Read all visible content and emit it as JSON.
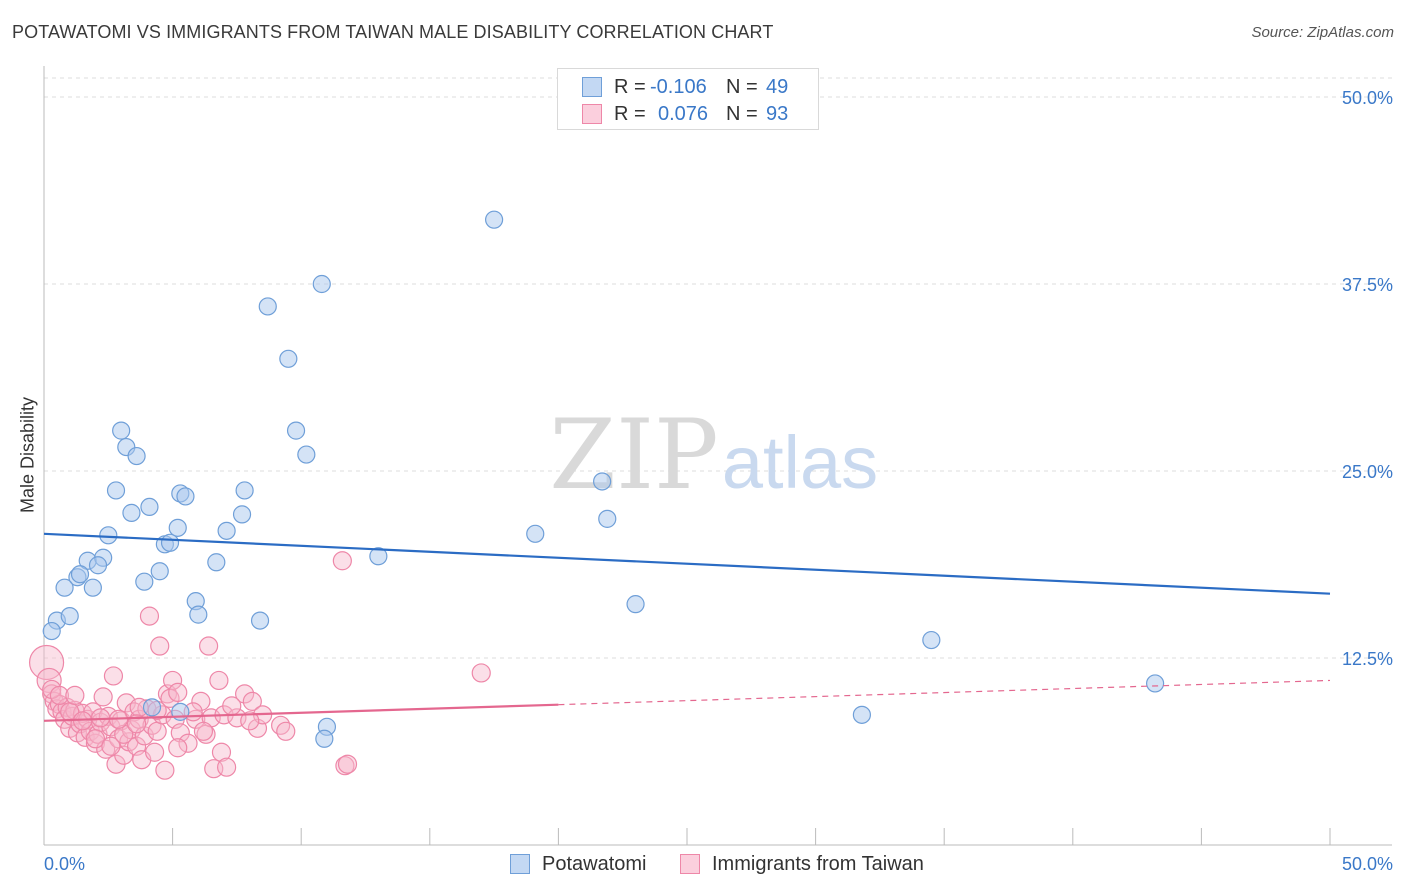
{
  "title": "POTAWATOMI VS IMMIGRANTS FROM TAIWAN MALE DISABILITY CORRELATION CHART",
  "source": "Source: ZipAtlas.com",
  "watermark": {
    "zip": "ZIP",
    "atlas": "atlas"
  },
  "legend": {
    "series1": {
      "r_label": "R =",
      "r_value": "-0.106",
      "n_label": "N =",
      "n_value": "49"
    },
    "series2": {
      "r_label": "R =",
      "r_value": "0.076",
      "n_label": "N =",
      "n_value": "93"
    }
  },
  "colors": {
    "blue_fill": "#a9c8ee",
    "blue_stroke": "#6f9fd8",
    "blue_line": "#2b6cc4",
    "pink_fill": "#f7b7cb",
    "pink_stroke": "#ee87a8",
    "pink_line": "#e4678f",
    "value_text": "#3a78c8"
  },
  "chart_data": {
    "type": "scatter",
    "title": "POTAWATOMI VS IMMIGRANTS FROM TAIWAN MALE DISABILITY CORRELATION CHART",
    "xlabel": "",
    "ylabel": "Male Disability",
    "xlim": [
      0,
      50
    ],
    "ylim": [
      0,
      50
    ],
    "x_tick_labels": [
      "0.0%",
      "50.0%"
    ],
    "y_ticks": [
      12.5,
      25.0,
      37.5,
      50.0
    ],
    "y_tick_labels": [
      "12.5%",
      "25.0%",
      "37.5%",
      "50.0%"
    ],
    "grid": true,
    "legend_position": "bottom",
    "series": [
      {
        "name": "Potawatomi",
        "r": -0.106,
        "n": 49,
        "trend": {
          "x0": 0,
          "y0": 20.8,
          "x1": 50,
          "y1": 16.8
        },
        "points": [
          [
            17.5,
            41.8
          ],
          [
            10.8,
            37.5
          ],
          [
            8.7,
            36.0
          ],
          [
            9.5,
            32.5
          ],
          [
            9.8,
            27.7
          ],
          [
            10.2,
            26.1
          ],
          [
            3.0,
            27.7
          ],
          [
            3.2,
            26.6
          ],
          [
            3.6,
            26.0
          ],
          [
            2.8,
            23.7
          ],
          [
            3.4,
            22.2
          ],
          [
            4.1,
            22.6
          ],
          [
            5.3,
            23.5
          ],
          [
            5.5,
            23.3
          ],
          [
            7.8,
            23.7
          ],
          [
            7.7,
            22.1
          ],
          [
            5.2,
            21.2
          ],
          [
            7.1,
            21.0
          ],
          [
            2.5,
            20.7
          ],
          [
            4.7,
            20.1
          ],
          [
            4.9,
            20.2
          ],
          [
            1.7,
            19.0
          ],
          [
            2.3,
            19.2
          ],
          [
            6.7,
            18.9
          ],
          [
            13.0,
            19.3
          ],
          [
            1.3,
            17.9
          ],
          [
            1.4,
            18.1
          ],
          [
            2.1,
            18.7
          ],
          [
            0.8,
            17.2
          ],
          [
            1.9,
            17.2
          ],
          [
            3.9,
            17.6
          ],
          [
            4.5,
            18.3
          ],
          [
            5.9,
            16.3
          ],
          [
            6.0,
            15.4
          ],
          [
            0.5,
            15.0
          ],
          [
            1.0,
            15.3
          ],
          [
            0.3,
            14.3
          ],
          [
            8.4,
            15.0
          ],
          [
            21.7,
            24.3
          ],
          [
            19.1,
            20.8
          ],
          [
            21.9,
            21.8
          ],
          [
            23.0,
            16.1
          ],
          [
            34.5,
            13.7
          ],
          [
            31.8,
            8.7
          ],
          [
            43.2,
            10.8
          ],
          [
            4.2,
            9.2
          ],
          [
            5.3,
            8.9
          ],
          [
            11.0,
            7.9
          ],
          [
            10.9,
            7.1
          ]
        ]
      },
      {
        "name": "Immigrants from Taiwan",
        "r": 0.076,
        "n": 93,
        "trend": {
          "x0": 0,
          "y0": 8.3,
          "x1": 50,
          "y1": 11.0,
          "solid_until": 20.0
        },
        "points": [
          [
            0.1,
            12.2
          ],
          [
            0.2,
            11.0
          ],
          [
            0.3,
            10.1
          ],
          [
            0.4,
            9.6
          ],
          [
            0.5,
            9.1
          ],
          [
            0.6,
            9.4
          ],
          [
            0.7,
            8.9
          ],
          [
            0.8,
            8.4
          ],
          [
            0.9,
            9.2
          ],
          [
            1.0,
            7.8
          ],
          [
            1.1,
            8.6
          ],
          [
            1.2,
            9.0
          ],
          [
            1.3,
            7.5
          ],
          [
            1.4,
            8.1
          ],
          [
            1.5,
            8.8
          ],
          [
            1.6,
            7.2
          ],
          [
            1.7,
            8.4
          ],
          [
            1.8,
            7.6
          ],
          [
            1.9,
            8.9
          ],
          [
            2.0,
            6.8
          ],
          [
            2.1,
            7.4
          ],
          [
            2.2,
            8.2
          ],
          [
            2.3,
            9.9
          ],
          [
            2.4,
            6.4
          ],
          [
            2.5,
            8.6
          ],
          [
            2.6,
            7.9
          ],
          [
            2.7,
            11.3
          ],
          [
            2.8,
            5.4
          ],
          [
            2.9,
            7.1
          ],
          [
            3.0,
            8.3
          ],
          [
            3.1,
            6.0
          ],
          [
            3.2,
            9.5
          ],
          [
            3.3,
            6.9
          ],
          [
            3.4,
            7.7
          ],
          [
            3.5,
            8.9
          ],
          [
            3.6,
            6.6
          ],
          [
            3.7,
            8.4
          ],
          [
            3.8,
            5.7
          ],
          [
            3.9,
            7.3
          ],
          [
            4.0,
            9.1
          ],
          [
            4.1,
            15.3
          ],
          [
            4.2,
            8.0
          ],
          [
            4.3,
            6.2
          ],
          [
            4.4,
            7.6
          ],
          [
            4.5,
            13.3
          ],
          [
            4.6,
            8.7
          ],
          [
            4.7,
            5.0
          ],
          [
            4.8,
            10.1
          ],
          [
            4.9,
            9.8
          ],
          [
            5.0,
            11.0
          ],
          [
            5.1,
            8.4
          ],
          [
            5.2,
            10.2
          ],
          [
            5.3,
            7.5
          ],
          [
            5.6,
            6.8
          ],
          [
            5.9,
            8.4
          ],
          [
            6.1,
            9.6
          ],
          [
            6.3,
            7.4
          ],
          [
            6.4,
            13.3
          ],
          [
            6.5,
            8.5
          ],
          [
            6.6,
            5.1
          ],
          [
            6.8,
            11.0
          ],
          [
            6.9,
            6.2
          ],
          [
            7.0,
            8.7
          ],
          [
            7.1,
            5.2
          ],
          [
            7.5,
            8.5
          ],
          [
            7.8,
            10.1
          ],
          [
            8.1,
            9.6
          ],
          [
            8.3,
            7.8
          ],
          [
            8.5,
            8.7
          ],
          [
            9.2,
            8.0
          ],
          [
            9.4,
            7.6
          ],
          [
            11.7,
            5.3
          ],
          [
            11.8,
            5.4
          ],
          [
            11.6,
            19.0
          ],
          [
            17.0,
            11.5
          ],
          [
            0.3,
            10.4
          ],
          [
            0.6,
            10.0
          ],
          [
            1.0,
            8.9
          ],
          [
            1.5,
            8.3
          ],
          [
            2.0,
            7.1
          ],
          [
            2.6,
            6.6
          ],
          [
            3.1,
            7.4
          ],
          [
            3.7,
            9.2
          ],
          [
            4.4,
            9.0
          ],
          [
            5.2,
            6.5
          ],
          [
            5.8,
            8.9
          ],
          [
            6.2,
            7.6
          ],
          [
            7.3,
            9.3
          ],
          [
            8.0,
            8.3
          ],
          [
            2.2,
            8.5
          ],
          [
            2.9,
            8.4
          ],
          [
            3.6,
            8.1
          ],
          [
            1.2,
            10.0
          ]
        ]
      }
    ]
  }
}
